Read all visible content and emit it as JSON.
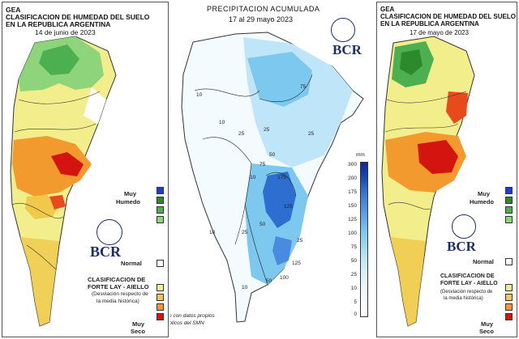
{
  "left": {
    "title_line1": "GEA",
    "title_line2": "CLASIFICACION DE HUMEDAD DEL SUELO",
    "title_line3": "EN LA REPUBLICA ARGENTINA",
    "date": "14 de junio de 2023",
    "legend_top": "Muy",
    "legend_top2": "Humedo",
    "legend_normal": "Normal",
    "legend_bottom": "Muy",
    "legend_bottom2": "Seco",
    "method_line1": "CLASIFICACION DE",
    "method_line2": "FORTE LAY - AIELLO",
    "note_line1": "(Desviación respecto de",
    "note_line2": "la media histórica)",
    "logo_text": "BCR"
  },
  "middle": {
    "title": "PRECIPITACION ACUMULADA",
    "date": "17 al 29 mayo 2023",
    "logo_text": "BCR",
    "unit": "mm",
    "scale": [
      "300",
      "200",
      "175",
      "150",
      "125",
      "100",
      "75",
      "50",
      "25",
      "10",
      "5",
      "0"
    ],
    "contour_labels": [
      "10",
      "10",
      "25",
      "25",
      "25",
      "50",
      "75",
      "75",
      "10",
      "10",
      "25",
      "50",
      "175",
      "125",
      "125",
      "100",
      "50",
      "10",
      "25"
    ],
    "footnote_line1": "Elaborado con datos propios",
    "footnote_line2": "y publicos del SMN"
  },
  "right": {
    "title_line1": "GEA",
    "title_line2": "CLASIFICACION DE HUMEDAD DEL SUELO",
    "title_line3": "EN LA REPUBLICA ARGENTINA",
    "date": "17 de mayo de 2023",
    "legend_top": "Muy",
    "legend_top2": "Humedo",
    "legend_normal": "Normal",
    "legend_bottom": "Muy",
    "legend_bottom2": "Seco",
    "method_line1": "CLASIFICACION DE",
    "method_line2": "FORTE LAY - AIELLO",
    "note_line1": "(Desviación respecto de",
    "note_line2": "la media histórica)",
    "logo_text": "BCR"
  },
  "colors": {
    "muy_humedo_dark": "#1a3fd0",
    "humedo_1": "#2c8a2c",
    "humedo_2": "#4caf50",
    "humedo_3": "#8ed47a",
    "normal": "#ffffff",
    "seco_1": "#f3ee8c",
    "seco_2": "#f0c84a",
    "seco_3": "#f29a2e",
    "seco_4": "#e84a1e",
    "muy_seco": "#d4140f",
    "precip_low": "#ffffff",
    "precip_mid": "#7cc8ee",
    "precip_high": "#1545b5"
  }
}
